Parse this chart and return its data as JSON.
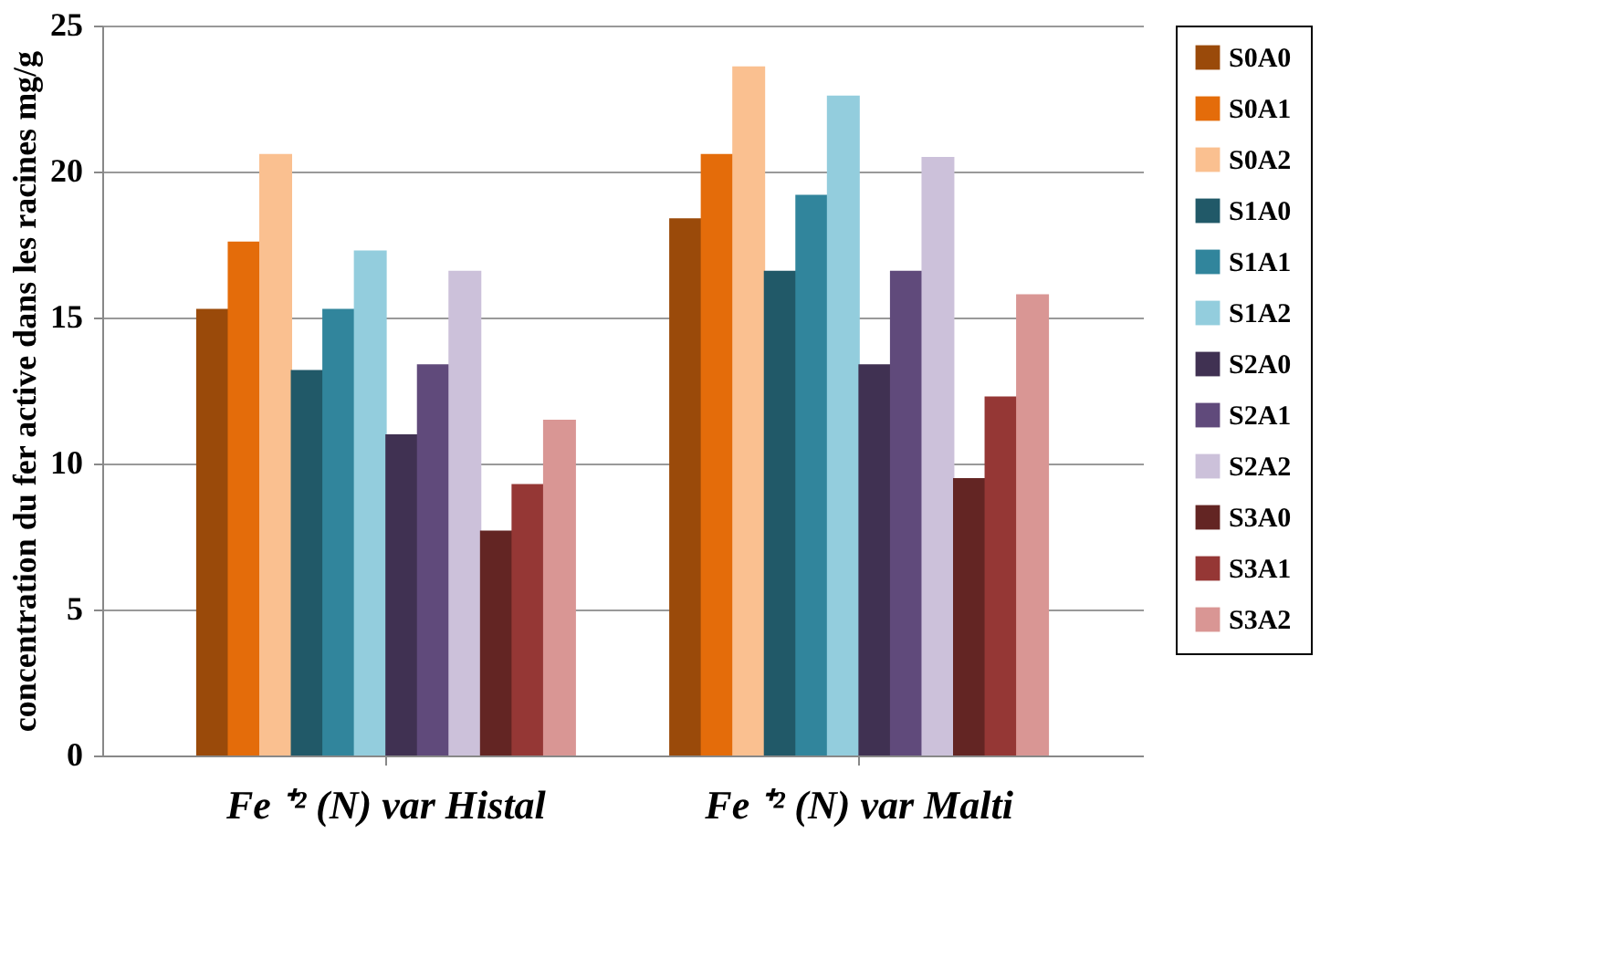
{
  "chart_data": {
    "type": "bar",
    "ylabel": "concentration du fer active dans les racines mg/g",
    "categories": [
      "Fe ⁺² (N) var Histal",
      "Fe ⁺² (N) var Malti"
    ],
    "series": [
      {
        "name": "S0A0",
        "color": "#9a4a0a",
        "values": [
          15.3,
          18.4
        ]
      },
      {
        "name": "S0A1",
        "color": "#e46c0a",
        "values": [
          17.6,
          20.6
        ]
      },
      {
        "name": "S0A2",
        "color": "#fac090",
        "values": [
          20.6,
          23.6
        ]
      },
      {
        "name": "S1A0",
        "color": "#215968",
        "values": [
          13.2,
          16.6
        ]
      },
      {
        "name": "S1A1",
        "color": "#31859c",
        "values": [
          15.3,
          19.2
        ]
      },
      {
        "name": "S1A2",
        "color": "#93cddd",
        "values": [
          17.3,
          22.6
        ]
      },
      {
        "name": "S2A0",
        "color": "#403152",
        "values": [
          11.0,
          13.4
        ]
      },
      {
        "name": "S2A1",
        "color": "#604a7b",
        "values": [
          13.4,
          16.6
        ]
      },
      {
        "name": "S2A2",
        "color": "#ccc1da",
        "values": [
          16.6,
          20.5
        ]
      },
      {
        "name": "S3A0",
        "color": "#632523",
        "values": [
          7.7,
          9.5
        ]
      },
      {
        "name": "S3A1",
        "color": "#953735",
        "values": [
          9.3,
          12.3
        ]
      },
      {
        "name": "S3A2",
        "color": "#d99694",
        "values": [
          11.5,
          15.8
        ]
      }
    ],
    "ylim": [
      0,
      25
    ],
    "yticks": [
      0,
      5,
      10,
      15,
      20,
      25
    ],
    "grid": "y",
    "legend": "right"
  }
}
